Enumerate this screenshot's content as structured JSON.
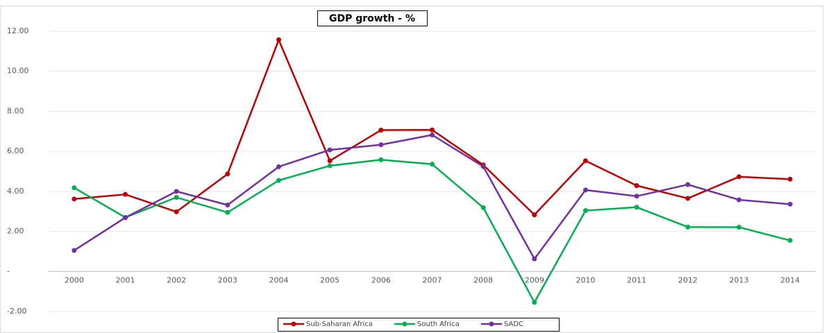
{
  "chart_data": {
    "type": "line",
    "title": "GDP growth - %",
    "categories": [
      "2000",
      "2001",
      "2002",
      "2003",
      "2004",
      "2005",
      "2006",
      "2007",
      "2008",
      "2009",
      "2010",
      "2011",
      "2012",
      "2013",
      "2014"
    ],
    "series": [
      {
        "name": "Sub-Saharan Africa",
        "color": "#c00000",
        "values": [
          3.62,
          3.85,
          2.98,
          4.87,
          11.57,
          5.53,
          7.06,
          7.07,
          5.32,
          2.83,
          5.53,
          4.29,
          3.65,
          4.73,
          4.61
        ]
      },
      {
        "name": "South Africa",
        "color": "#00b050",
        "values": [
          4.18,
          2.7,
          3.7,
          2.95,
          4.55,
          5.28,
          5.58,
          5.36,
          3.19,
          -1.54,
          3.04,
          3.21,
          2.22,
          2.21,
          1.55
        ]
      },
      {
        "name": "SADC",
        "color": "#7030a0",
        "values": [
          1.05,
          2.69,
          4.0,
          3.32,
          5.23,
          6.07,
          6.33,
          6.82,
          5.24,
          0.63,
          4.07,
          3.76,
          4.34,
          3.58,
          3.36
        ]
      }
    ],
    "ylim": [
      -2,
      12
    ],
    "yticks": [
      {
        "value": -2,
        "label": "-2.00"
      },
      {
        "value": 0,
        "label": "-"
      },
      {
        "value": 2,
        "label": "2.00"
      },
      {
        "value": 4,
        "label": "4.00"
      },
      {
        "value": 6,
        "label": "6.00"
      },
      {
        "value": 8,
        "label": "8.00"
      },
      {
        "value": 10,
        "label": "10.00"
      },
      {
        "value": 12,
        "label": "12.00"
      }
    ],
    "grid": true,
    "legend": "bottom"
  }
}
